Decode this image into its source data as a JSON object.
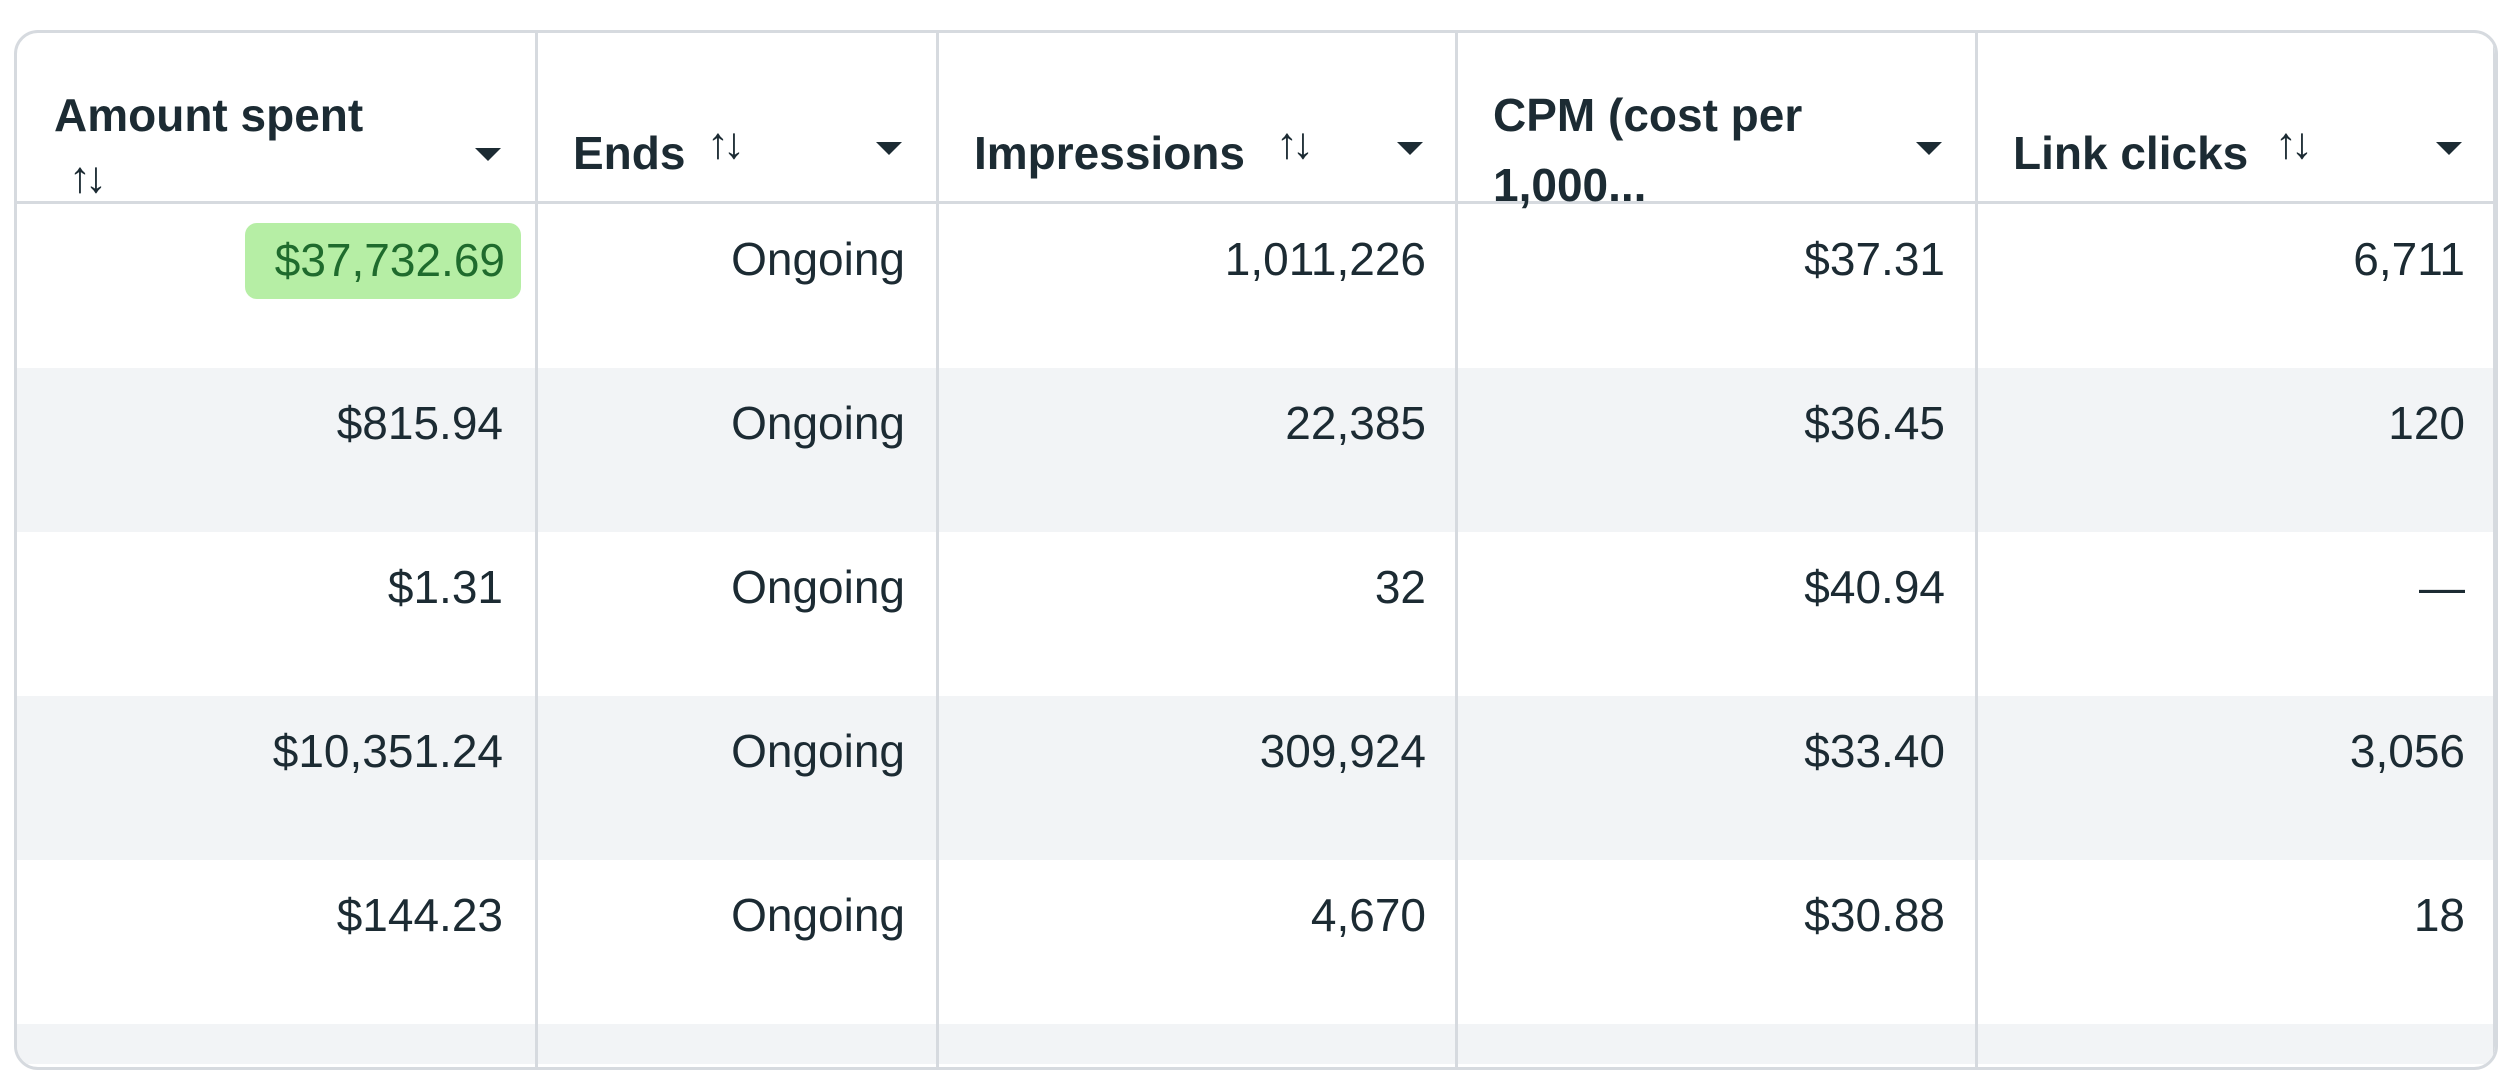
{
  "columns": [
    {
      "key": "amount_spent",
      "label_line1": "Amount spent",
      "label_line2": "",
      "sort_icon": "sort-arrows-icon",
      "menu_icon": "caret-down-icon"
    },
    {
      "key": "ends",
      "label_line1": "Ends",
      "label_line2": "",
      "sort_icon": "sort-arrows-icon",
      "menu_icon": "caret-down-icon"
    },
    {
      "key": "impressions",
      "label_line1": "Impressions",
      "label_line2": "",
      "sort_icon": "sort-arrows-icon",
      "menu_icon": "caret-down-icon"
    },
    {
      "key": "cpm",
      "label_line1": "CPM (cost per",
      "label_line2": "1,000...",
      "sort_icon": "",
      "menu_icon": "caret-down-icon"
    },
    {
      "key": "link_clicks",
      "label_line1": "Link clicks",
      "label_line2": "",
      "sort_icon": "sort-arrows-icon",
      "menu_icon": "caret-down-icon"
    }
  ],
  "sort_glyph": "↑↓",
  "rows": [
    {
      "amount_spent": "$37,732.69",
      "ends": "Ongoing",
      "impressions": "1,011,226",
      "cpm": "$37.31",
      "link_clicks": "6,711",
      "highlighted": true
    },
    {
      "amount_spent": "$815.94",
      "ends": "Ongoing",
      "impressions": "22,385",
      "cpm": "$36.45",
      "link_clicks": "120"
    },
    {
      "amount_spent": "$1.31",
      "ends": "Ongoing",
      "impressions": "32",
      "cpm": "$40.94",
      "link_clicks": "—"
    },
    {
      "amount_spent": "$10,351.24",
      "ends": "Ongoing",
      "impressions": "309,924",
      "cpm": "$33.40",
      "link_clicks": "3,056"
    },
    {
      "amount_spent": "$144.23",
      "ends": "Ongoing",
      "impressions": "4,670",
      "cpm": "$30.88",
      "link_clicks": "18"
    }
  ],
  "colors": {
    "highlight_bg": "#b6eea5",
    "highlight_text": "#1f6b2d",
    "alt_row_bg": "#f2f4f6",
    "border": "#d6dadf"
  }
}
